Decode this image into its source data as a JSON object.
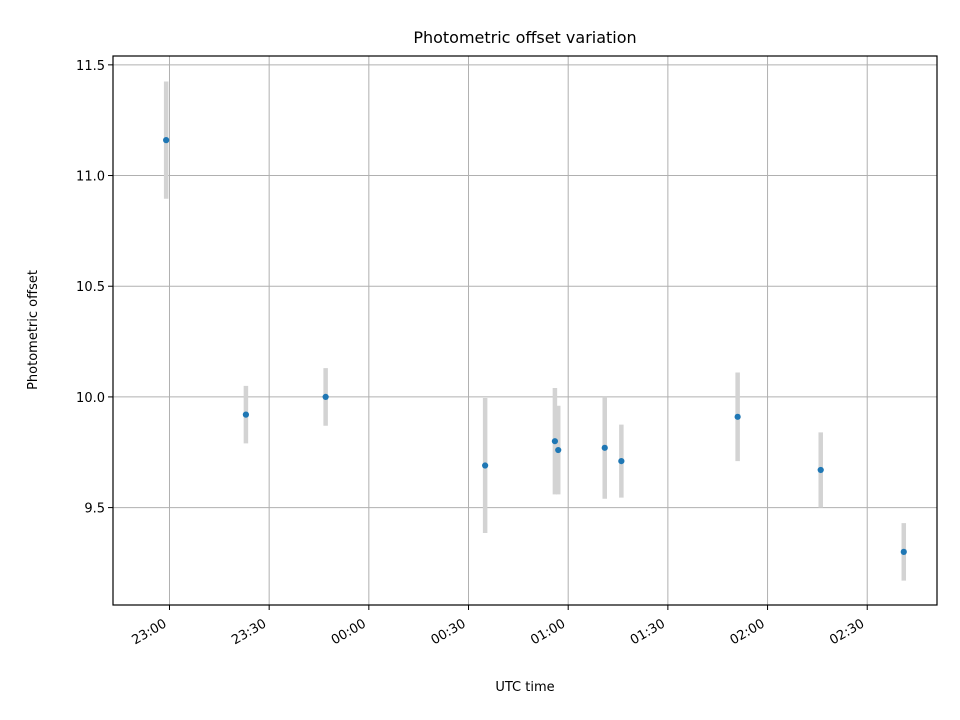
{
  "chart_data": {
    "type": "scatter",
    "title": "Photometric offset variation",
    "xlabel": "UTC time",
    "ylabel": "Photometric offset",
    "x_axis_type": "time",
    "xlim": [
      "22:43",
      "02:51"
    ],
    "ylim": [
      9.06,
      11.54
    ],
    "x_ticks": [
      "23:00",
      "23:30",
      "00:00",
      "00:30",
      "01:00",
      "01:30",
      "02:00",
      "02:30"
    ],
    "y_ticks": [
      9.5,
      10.0,
      10.5,
      11.0,
      11.5
    ],
    "y_tick_labels": [
      "9.5",
      "10.0",
      "10.5",
      "11.0",
      "11.5"
    ],
    "x_tick_rotation": "30",
    "grid": true,
    "legend": "none",
    "marker_color": "#1f77b4",
    "errorbar_color": "#d3d3d3",
    "points": [
      {
        "x": "22:59",
        "y": 11.16,
        "yerr": 0.265
      },
      {
        "x": "23:23",
        "y": 9.92,
        "yerr": 0.13
      },
      {
        "x": "23:47",
        "y": 10.0,
        "yerr": 0.13
      },
      {
        "x": "00:35",
        "y": 9.69,
        "yerr": 0.305
      },
      {
        "x": "00:56",
        "y": 9.8,
        "yerr": 0.24
      },
      {
        "x": "00:57",
        "y": 9.76,
        "yerr": 0.2
      },
      {
        "x": "01:11",
        "y": 9.77,
        "yerr": 0.23
      },
      {
        "x": "01:16",
        "y": 9.71,
        "yerr": 0.165
      },
      {
        "x": "01:51",
        "y": 9.91,
        "yerr": 0.2
      },
      {
        "x": "02:16",
        "y": 9.67,
        "yerr": 0.17
      },
      {
        "x": "02:41",
        "y": 9.3,
        "yerr": 0.13
      }
    ]
  }
}
